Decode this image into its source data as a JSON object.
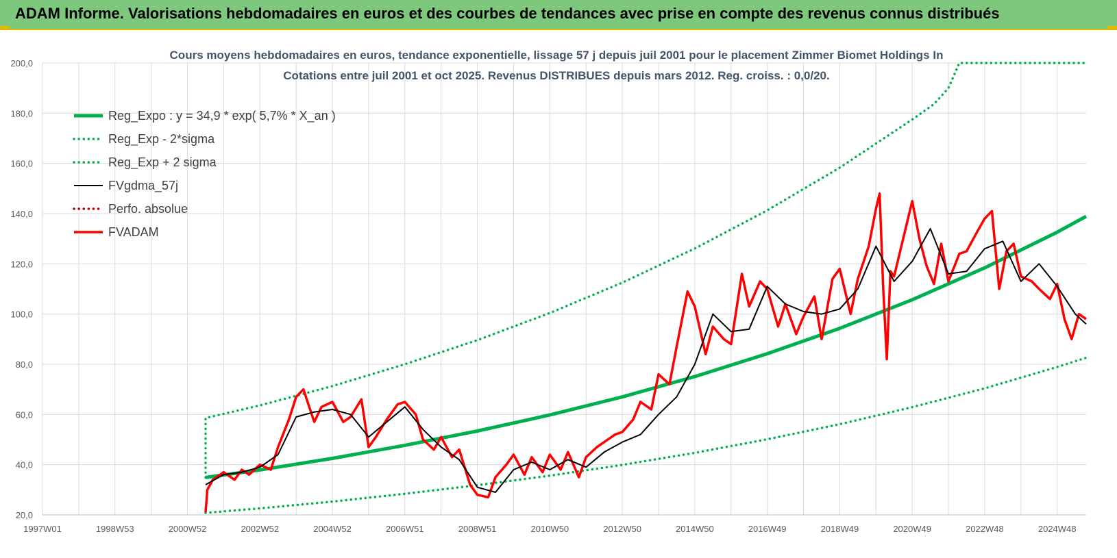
{
  "header": {
    "banner_text": "ADAM Informe. Valorisations hebdomadaires en euros et des courbes de tendances avec prise en compte des revenus connus distribués"
  },
  "colors": {
    "banner_bg": "#7ec87e",
    "trend_green": "#00b050",
    "price_red": "#ff0000",
    "smooth_black": "#000000",
    "grid": "#d9d9d9"
  },
  "chart_data": {
    "type": "line",
    "title": [
      "Cours moyens hebdomadaires en euros, tendance exponentielle, lissage 57 j depuis juil 2001 pour le placement Zimmer Biomet Holdings In",
      "Cotations entre juil 2001 et oct 2025. Revenus DISTRIBUES depuis mars 2012. Reg. croiss. : 0,0/20."
    ],
    "xlabel": "",
    "ylabel": "",
    "ylim": [
      20,
      200
    ],
    "xlim": [
      1997.0,
      2025.8
    ],
    "grid": true,
    "y_ticks": [
      200,
      180,
      160,
      140,
      120,
      100,
      80,
      60,
      40,
      20
    ],
    "y_tick_labels": [
      "200,0",
      "180,0",
      "160,0",
      "140,0",
      "120,0",
      "100,0",
      "80,0",
      "60,0",
      "40,0",
      "20,0"
    ],
    "x_ticks": [
      {
        "label": "1997W01",
        "x": 1997.0
      },
      {
        "label": "1998W53",
        "x": 1999.0
      },
      {
        "label": "2000W52",
        "x": 2001.0
      },
      {
        "label": "2002W52",
        "x": 2003.0
      },
      {
        "label": "2004W52",
        "x": 2005.0
      },
      {
        "label": "2006W51",
        "x": 2007.0
      },
      {
        "label": "2008W51",
        "x": 2009.0
      },
      {
        "label": "2010W50",
        "x": 2011.0
      },
      {
        "label": "2012W50",
        "x": 2013.0
      },
      {
        "label": "2014W50",
        "x": 2015.0
      },
      {
        "label": "2016W49",
        "x": 2017.0
      },
      {
        "label": "2018W49",
        "x": 2019.0
      },
      {
        "label": "2020W49",
        "x": 2021.0
      },
      {
        "label": "2022W48",
        "x": 2023.0
      },
      {
        "label": "2024W48",
        "x": 2025.0
      }
    ],
    "legend_position": "top-left",
    "series": [
      {
        "name": "Reg_Expo : y = 34,9 * exp( 5,7% *  X_an )",
        "style": "solid-thick",
        "color": "#00b050",
        "x": [
          2001.5,
          2003.0,
          2005.0,
          2007.0,
          2009.0,
          2011.0,
          2013.0,
          2015.0,
          2017.0,
          2019.0,
          2021.0,
          2023.0,
          2025.0,
          2025.8
        ],
        "values": [
          34.9,
          37.9,
          42.5,
          47.7,
          53.4,
          59.8,
          67.0,
          75.1,
          84.2,
          94.3,
          105.7,
          118.4,
          132.6,
          138.9
        ]
      },
      {
        "name": "Reg_Exp - 2*sigma",
        "style": "dotted",
        "color": "#00b050",
        "x": [
          2001.5,
          2003.0,
          2005.0,
          2007.0,
          2009.0,
          2011.0,
          2013.0,
          2015.0,
          2017.0,
          2019.0,
          2021.0,
          2023.0,
          2025.0,
          2025.8
        ],
        "values": [
          20.8,
          22.6,
          25.3,
          28.4,
          31.8,
          35.6,
          39.9,
          44.7,
          50.1,
          56.1,
          62.9,
          70.4,
          78.9,
          82.6
        ]
      },
      {
        "name": "Reg_Exp + 2 sigma",
        "style": "dotted",
        "color": "#00b050",
        "x": [
          2001.5,
          2003.0,
          2005.0,
          2007.0,
          2009.0,
          2011.0,
          2013.0,
          2015.0,
          2017.0,
          2019.0,
          2021.0,
          2021.6,
          2022.0,
          2022.3,
          2025.8
        ],
        "values": [
          58.6,
          63.6,
          71.3,
          80.0,
          89.6,
          100.4,
          112.5,
          126.1,
          141.3,
          158.3,
          177.5,
          183.6,
          190.0,
          200.0,
          200.0
        ]
      },
      {
        "name": "FVgdma_57j",
        "style": "solid",
        "color": "#000000",
        "x": [
          2001.5,
          2002.0,
          2002.5,
          2003.0,
          2003.5,
          2004.0,
          2004.5,
          2005.0,
          2005.5,
          2006.0,
          2006.5,
          2007.0,
          2007.5,
          2008.0,
          2008.5,
          2009.0,
          2009.5,
          2010.0,
          2010.5,
          2011.0,
          2011.5,
          2012.0,
          2012.5,
          2013.0,
          2013.5,
          2014.0,
          2014.5,
          2015.0,
          2015.5,
          2016.0,
          2016.5,
          2017.0,
          2017.5,
          2018.0,
          2018.5,
          2019.0,
          2019.5,
          2020.0,
          2020.5,
          2021.0,
          2021.5,
          2022.0,
          2022.5,
          2023.0,
          2023.5,
          2024.0,
          2024.5,
          2025.0,
          2025.5,
          2025.8
        ],
        "values": [
          32,
          36,
          37,
          39,
          44,
          59,
          61,
          62,
          60,
          51,
          57,
          63,
          54,
          47,
          42,
          31,
          29,
          38,
          41,
          38,
          42,
          39,
          45,
          49,
          52,
          60,
          67,
          80,
          100,
          93,
          94,
          111,
          104,
          101,
          100,
          102,
          110,
          127,
          113,
          121,
          134,
          116,
          117,
          126,
          129,
          113,
          120,
          111,
          100,
          96
        ]
      },
      {
        "name": "Perfo. absolue",
        "style": "dotted",
        "color": "#c00000",
        "x": [],
        "values": []
      },
      {
        "name": "FVADAM",
        "style": "solid-thick",
        "color": "#ff0000",
        "x": [
          2001.5,
          2001.55,
          2001.7,
          2002.0,
          2002.3,
          2002.5,
          2002.7,
          2003.0,
          2003.3,
          2003.5,
          2003.8,
          2004.0,
          2004.2,
          2004.5,
          2004.7,
          2005.0,
          2005.3,
          2005.5,
          2005.8,
          2006.0,
          2006.2,
          2006.5,
          2006.8,
          2007.0,
          2007.3,
          2007.5,
          2007.8,
          2008.0,
          2008.3,
          2008.5,
          2008.8,
          2009.0,
          2009.3,
          2009.5,
          2009.8,
          2010.0,
          2010.3,
          2010.5,
          2010.8,
          2011.0,
          2011.3,
          2011.5,
          2011.8,
          2012.0,
          2012.3,
          2012.5,
          2012.8,
          2013.0,
          2013.3,
          2013.5,
          2013.8,
          2014.0,
          2014.3,
          2014.5,
          2014.8,
          2015.0,
          2015.3,
          2015.5,
          2015.8,
          2016.0,
          2016.3,
          2016.5,
          2016.8,
          2017.0,
          2017.3,
          2017.5,
          2017.8,
          2018.0,
          2018.3,
          2018.5,
          2018.8,
          2019.0,
          2019.3,
          2019.5,
          2019.8,
          2020.0,
          2020.1,
          2020.2,
          2020.3,
          2020.4,
          2020.5,
          2020.8,
          2021.0,
          2021.2,
          2021.4,
          2021.6,
          2021.8,
          2022.0,
          2022.3,
          2022.5,
          2022.8,
          2023.0,
          2023.2,
          2023.4,
          2023.6,
          2023.8,
          2024.0,
          2024.3,
          2024.5,
          2024.8,
          2025.0,
          2025.2,
          2025.4,
          2025.6,
          2025.8
        ],
        "values": [
          21,
          30,
          34,
          37,
          34,
          38,
          36,
          40,
          38,
          47,
          58,
          67,
          70,
          57,
          63,
          65,
          57,
          59,
          66,
          47,
          51,
          58,
          64,
          65,
          60,
          50,
          46,
          51,
          43,
          46,
          32,
          28,
          27,
          35,
          40,
          44,
          36,
          43,
          37,
          44,
          38,
          45,
          35,
          43,
          47,
          49,
          52,
          53,
          58,
          65,
          62,
          76,
          72,
          87,
          109,
          103,
          84,
          95,
          90,
          88,
          116,
          103,
          113,
          110,
          95,
          104,
          92,
          99,
          107,
          90,
          114,
          118,
          100,
          114,
          127,
          142,
          148,
          110,
          82,
          117,
          115,
          133,
          145,
          130,
          119,
          112,
          128,
          113,
          124,
          125,
          133,
          138,
          141,
          110,
          125,
          128,
          115,
          113,
          110,
          106,
          112,
          98,
          90,
          100,
          98
        ]
      }
    ]
  }
}
